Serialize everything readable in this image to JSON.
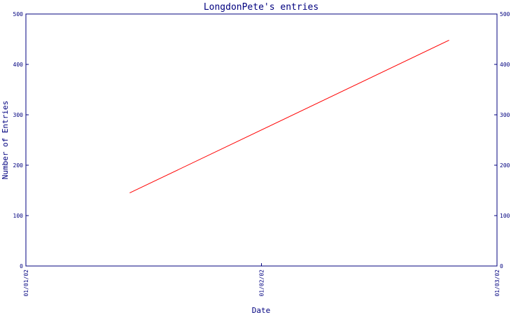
{
  "chart_data": {
    "type": "line",
    "title": "LongdonPete's entries",
    "xlabel": "Date",
    "ylabel": "Number of Entries",
    "x_tick_labels": [
      "01/01/02",
      "01/02/02",
      "01/03/02"
    ],
    "y_ticks": [
      0,
      100,
      200,
      300,
      400,
      500
    ],
    "y_tick_labels": [
      "0",
      "100",
      "200",
      "300",
      "400",
      "500"
    ],
    "ylim": [
      0,
      500
    ],
    "xlim": [
      "2002-01-01",
      "2002-03-01"
    ],
    "grid": false,
    "series": [
      {
        "color": "#ff0000",
        "points": [
          {
            "x": "2002-01-14",
            "y": 145
          },
          {
            "x": "2002-02-23",
            "y": 448
          }
        ]
      }
    ]
  },
  "colors": {
    "axis": "#00007f",
    "text": "#00007f",
    "line": "#ff0000"
  }
}
